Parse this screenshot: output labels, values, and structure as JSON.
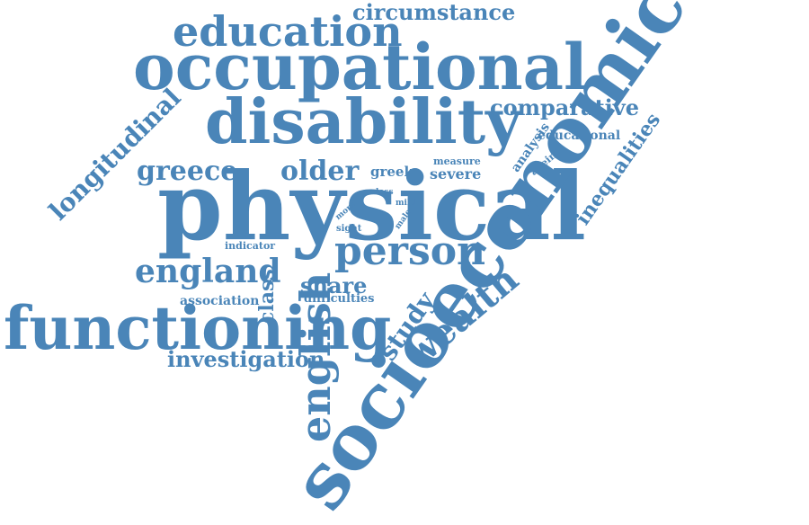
{
  "words": {
    "circumstance": "circumstance",
    "education": "education",
    "occupational": "occupational",
    "disability": "disability",
    "comparative": "comparative",
    "longitudinal": "longitudinal",
    "greece": "greece",
    "older": "older",
    "greek": "greek",
    "measure": "measure",
    "severe": "severe",
    "analysis": "analysis",
    "educational": "educational",
    "ageing": "ageing",
    "inequalities": "inequalities",
    "physical": "physical",
    "loss": "loss",
    "mild": "mild",
    "more": "more",
    "sight": "sight",
    "male": "male",
    "indicator": "indicator",
    "class": "class",
    "person": "person",
    "england": "england",
    "share": "share",
    "association": "association",
    "difficulties": "difficulties",
    "english": "english",
    "study": "study",
    "wealth": "wealth",
    "functioning": "functioning",
    "investigation": "investigation",
    "socioeconomic": "socioeconomic"
  },
  "colors": {
    "word": "#4a85b8",
    "background": "#ffffff"
  }
}
